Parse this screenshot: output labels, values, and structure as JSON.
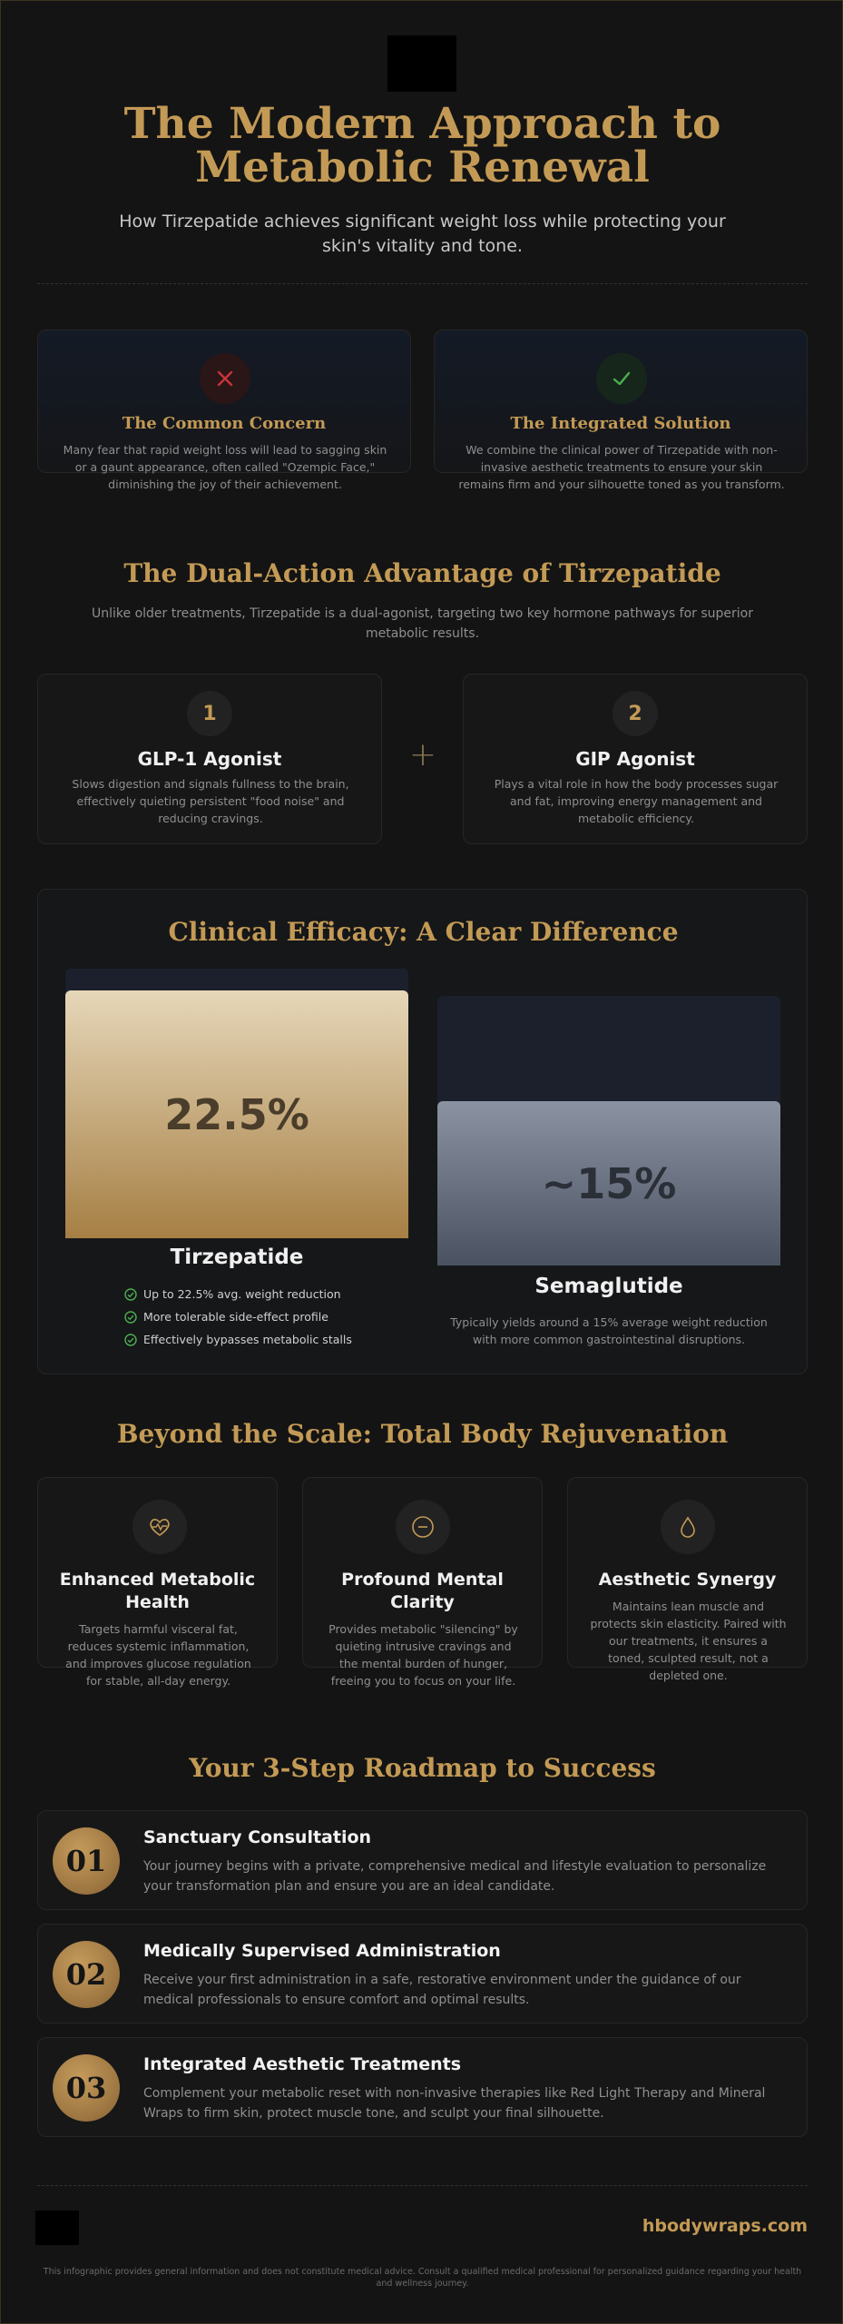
{
  "header": {
    "title": "The Modern Approach to Metabolic Renewal",
    "subtitle": "How Tirzepatide achieves significant weight loss while protecting your skin's vitality and tone."
  },
  "concern_solution": {
    "concern": {
      "icon": "x-icon",
      "title": "The Common Concern",
      "text": "Many fear that rapid weight loss will lead to sagging skin or a gaunt appearance, often called \"Ozempic Face,\" diminishing the joy of their achievement."
    },
    "solution": {
      "icon": "check-icon",
      "title": "The Integrated Solution",
      "text": "We combine the clinical power of Tirzepatide with non-invasive aesthetic treatments to ensure your skin remains firm and your silhouette toned as you transform."
    }
  },
  "dual_action": {
    "title": "The Dual-Action Advantage of Tirzepatide",
    "text": "Unlike older treatments, Tirzepatide is a dual-agonist, targeting two key hormone pathways for superior metabolic results.",
    "plus_symbol": "+",
    "items": [
      {
        "number": "1",
        "title": "GLP-1 Agonist",
        "text": "Slows digestion and signals fullness to the brain, effectively quieting persistent \"food noise\" and reducing cravings."
      },
      {
        "number": "2",
        "title": "GIP Agonist",
        "text": "Plays a vital role in how the body processes sugar and fat, improving energy management and metabolic efficiency."
      }
    ]
  },
  "efficacy": {
    "title": "Clinical Efficacy: A Clear Difference",
    "tirzepatide": {
      "name": "Tirzepatide",
      "value_label": "22.5%",
      "fill": 0.92,
      "checks": [
        "Up to 22.5% avg. weight reduction",
        "More tolerable side-effect profile",
        "Effectively bypasses metabolic stalls"
      ]
    },
    "semaglutide": {
      "name": "Semaglutide",
      "value_label": "~15%",
      "fill": 0.61,
      "text": "Typically yields around a 15% average weight reduction with more common gastrointestinal disruptions."
    },
    "colors": {
      "tirzepatide_top": "#e6d7b9",
      "tirzepatide_bottom": "#a67f44",
      "semaglutide_top": "#8b93a3",
      "semaglutide_bottom": "#4a5262"
    }
  },
  "beyond": {
    "title": "Beyond the Scale: Total Body Rejuvenation",
    "cards": [
      {
        "icon": "heart-pulse-icon",
        "title": "Enhanced Metabolic Health",
        "text": "Targets harmful visceral fat, reduces systemic inflammation, and improves glucose regulation for stable, all-day energy."
      },
      {
        "icon": "minus-circle-icon",
        "title": "Profound Mental Clarity",
        "text": "Provides metabolic \"silencing\" by quieting intrusive cravings and the mental burden of hunger, freeing you to focus on your life."
      },
      {
        "icon": "droplet-icon",
        "title": "Aesthetic Synergy",
        "text": "Maintains lean muscle and protects skin elasticity. Paired with our treatments, it ensures a toned, sculpted result, not a depleted one."
      }
    ]
  },
  "roadmap": {
    "title": "Your 3-Step Roadmap to Success",
    "steps": [
      {
        "number": "01",
        "title": "Sanctuary Consultation",
        "text": "Your journey begins with a private, comprehensive medical and lifestyle evaluation to personalize your transformation plan and ensure you are an ideal candidate."
      },
      {
        "number": "02",
        "title": "Medically Supervised Administration",
        "text": "Receive your first administration in a safe, restorative environment under the guidance of our medical professionals to ensure comfort and optimal results."
      },
      {
        "number": "03",
        "title": "Integrated Aesthetic Treatments",
        "text": "Complement your metabolic reset with non-invasive therapies like Red Light Therapy and Mineral Wraps to firm skin, protect muscle tone, and sculpt your final silhouette."
      }
    ]
  },
  "footer": {
    "site": "hbodywraps.com",
    "disclaimer": "This infographic provides general information and does not constitute medical advice. Consult a qualified medical professional for personalized guidance regarding your health and wellness journey."
  },
  "accent_color": "#c39a55"
}
